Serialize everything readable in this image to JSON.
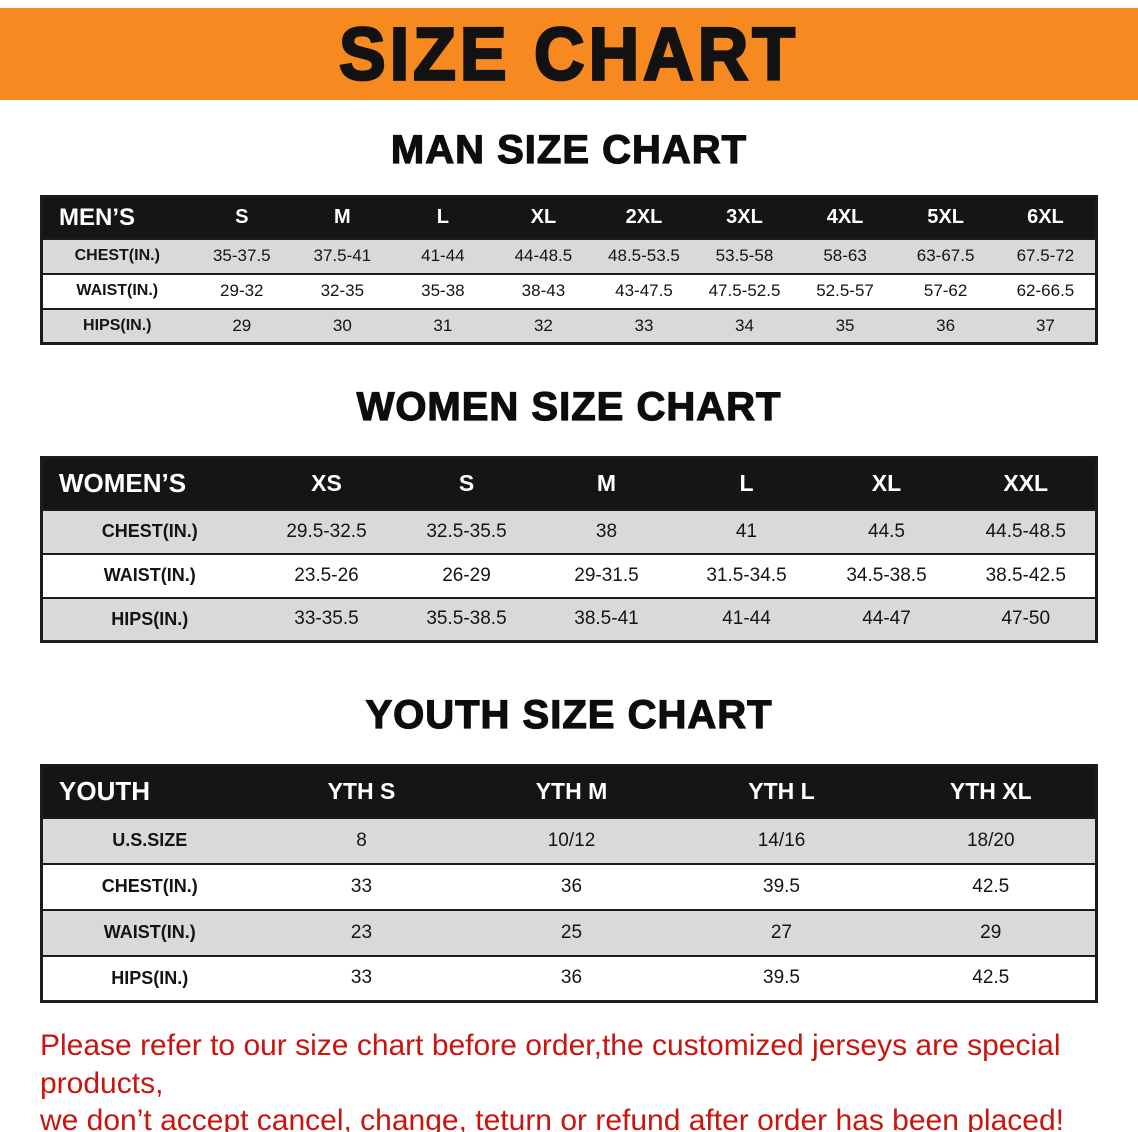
{
  "banner": {
    "title": "SIZE CHART"
  },
  "sections": [
    {
      "heading": "MAN SIZE CHART",
      "table": {
        "header": [
          "MEN’S",
          "S",
          "M",
          "L",
          "XL",
          "2XL",
          "3XL",
          "4XL",
          "5XL",
          "6XL"
        ],
        "rows": [
          [
            "CHEST(IN.)",
            "35-37.5",
            "37.5-41",
            "41-44",
            "44-48.5",
            "48.5-53.5",
            "53.5-58",
            "58-63",
            "63-67.5",
            "67.5-72"
          ],
          [
            "WAIST(IN.)",
            "29-32",
            "32-35",
            "35-38",
            "38-43",
            "43-47.5",
            "47.5-52.5",
            "52.5-57",
            "57-62",
            "62-66.5"
          ],
          [
            "HIPS(IN.)",
            "29",
            "30",
            "31",
            "32",
            "33",
            "34",
            "35",
            "36",
            "37"
          ]
        ]
      }
    },
    {
      "heading": "WOMEN SIZE CHART",
      "table": {
        "header": [
          "WOMEN’S",
          "XS",
          "S",
          "M",
          "L",
          "XL",
          "XXL"
        ],
        "rows": [
          [
            "CHEST(IN.)",
            "29.5-32.5",
            "32.5-35.5",
            "38",
            "41",
            "44.5",
            "44.5-48.5"
          ],
          [
            "WAIST(IN.)",
            "23.5-26",
            "26-29",
            "29-31.5",
            "31.5-34.5",
            "34.5-38.5",
            "38.5-42.5"
          ],
          [
            "HIPS(IN.)",
            "33-35.5",
            "35.5-38.5",
            "38.5-41",
            "41-44",
            "44-47",
            "47-50"
          ]
        ]
      }
    },
    {
      "heading": "YOUTH SIZE CHART",
      "table": {
        "header": [
          "YOUTH",
          "YTH S",
          "YTH M",
          "YTH L",
          "YTH XL"
        ],
        "rows": [
          [
            "U.S.SIZE",
            "8",
            "10/12",
            "14/16",
            "18/20"
          ],
          [
            "CHEST(IN.)",
            "33",
            "36",
            "39.5",
            "42.5"
          ],
          [
            "WAIST(IN.)",
            "23",
            "25",
            "27",
            "29"
          ],
          [
            "HIPS(IN.)",
            "33",
            "36",
            "39.5",
            "42.5"
          ]
        ]
      }
    }
  ],
  "disclaimer": {
    "line1": "Please refer to our size chart before order,the customized jerseys are special products,",
    "line2": "we don’t accept cancel, change, teturn or refund after order has been placed!"
  },
  "colors": {
    "banner_bg": "#f6891f",
    "table_header_bg": "#151515",
    "table_header_text": "#ffffff",
    "row_alt_bg": "#d9d9d9",
    "border": "#1c1c1c",
    "disclaimer_text": "#c9150f"
  }
}
